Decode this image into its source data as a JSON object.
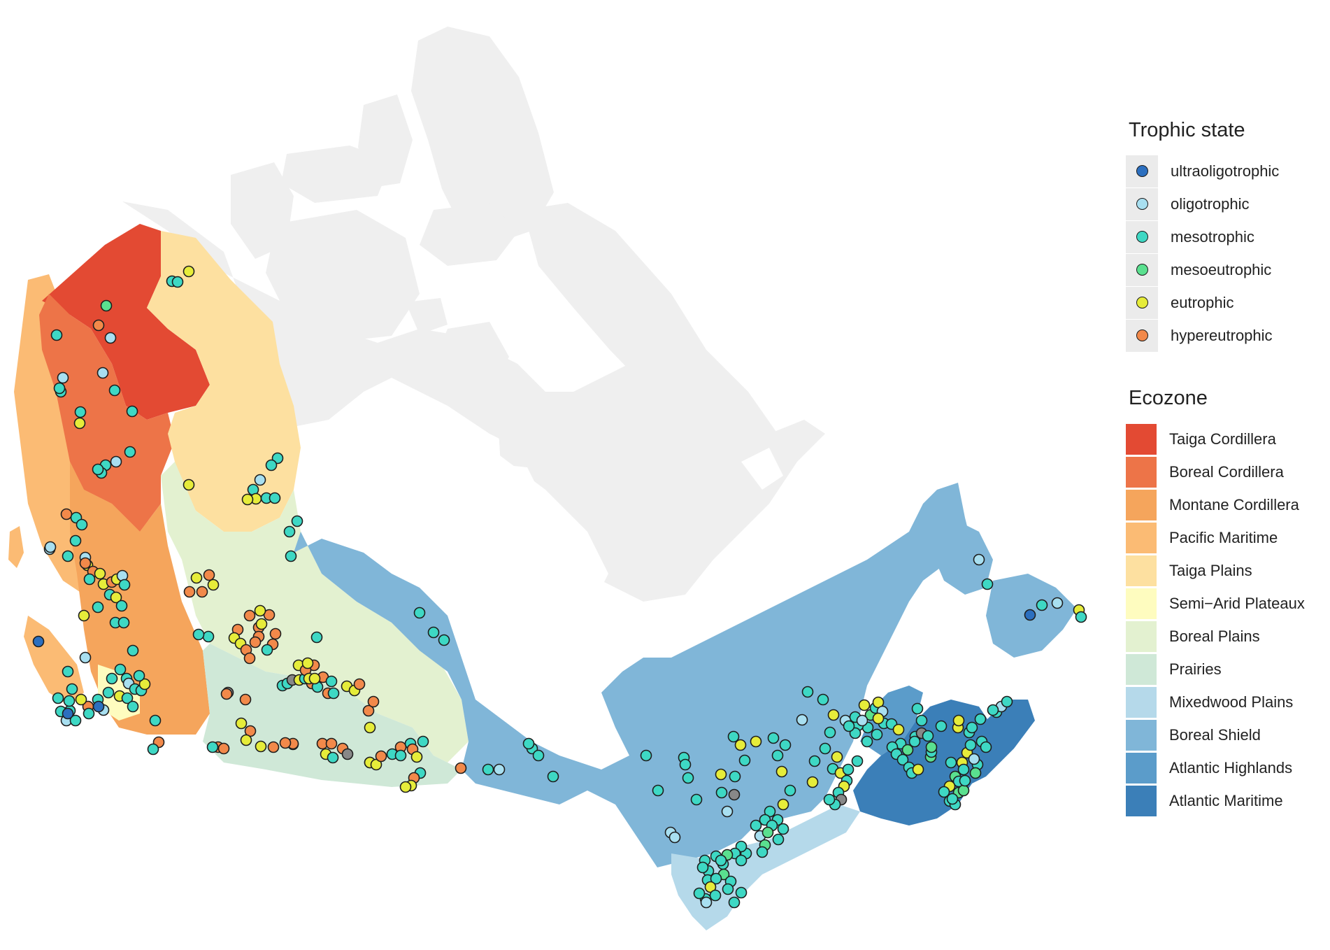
{
  "map": {
    "ecozones": [
      {
        "id": "taiga-cordillera",
        "color": "#e34a33"
      },
      {
        "id": "boreal-cordillera",
        "color": "#ed7448"
      },
      {
        "id": "montane-cordillera",
        "color": "#f5a55c"
      },
      {
        "id": "pacific-maritime",
        "color": "#fbbb74"
      },
      {
        "id": "taiga-plains",
        "color": "#fde0a0"
      },
      {
        "id": "semi-arid-plateaux",
        "color": "#fefcbf"
      },
      {
        "id": "boreal-plains",
        "color": "#e3f1d0"
      },
      {
        "id": "prairies",
        "color": "#cfe8d7"
      },
      {
        "id": "mixedwood-plains",
        "color": "#b5d9ea"
      },
      {
        "id": "boreal-shield",
        "color": "#80b6d8"
      },
      {
        "id": "atlantic-highlands",
        "color": "#5b9cca"
      },
      {
        "id": "atlantic-maritime",
        "color": "#3b7fb8"
      }
    ],
    "unclassified_color": "#efefef",
    "no_data_site_color": "#888888"
  },
  "legend": {
    "trophic_state": {
      "title": "Trophic state",
      "items": [
        {
          "key": "ultra",
          "label": "ultraoligotrophic",
          "color": "#2c6fbf"
        },
        {
          "key": "oligo",
          "label": "oligotrophic",
          "color": "#a8dff0"
        },
        {
          "key": "meso",
          "label": "mesotrophic",
          "color": "#3ed8c4"
        },
        {
          "key": "mesoeu",
          "label": "mesoeutrophic",
          "color": "#5ae08f"
        },
        {
          "key": "eu",
          "label": "eutrophic",
          "color": "#e6ec3a"
        },
        {
          "key": "hyper",
          "label": "hypereutrophic",
          "color": "#f2894a"
        }
      ]
    },
    "ecozone": {
      "title": "Ecozone",
      "items": [
        {
          "label": "Taiga Cordillera",
          "color": "#e34a33"
        },
        {
          "label": "Boreal Cordillera",
          "color": "#ed7448"
        },
        {
          "label": "Montane Cordillera",
          "color": "#f5a55c"
        },
        {
          "label": "Pacific Maritime",
          "color": "#fbbb74"
        },
        {
          "label": "Taiga Plains",
          "color": "#fde0a0"
        },
        {
          "label": "Semi−Arid Plateaux",
          "color": "#fefcbf"
        },
        {
          "label": "Boreal Plains",
          "color": "#e3f1d0"
        },
        {
          "label": "Prairies",
          "color": "#cfe8d7"
        },
        {
          "label": "Mixedwood Plains",
          "color": "#b5d9ea"
        },
        {
          "label": "Boreal Shield",
          "color": "#80b6d8"
        },
        {
          "label": "Atlantic Highlands",
          "color": "#5b9cca"
        },
        {
          "label": "Atlantic Maritime",
          "color": "#3b7fb8"
        }
      ]
    }
  }
}
